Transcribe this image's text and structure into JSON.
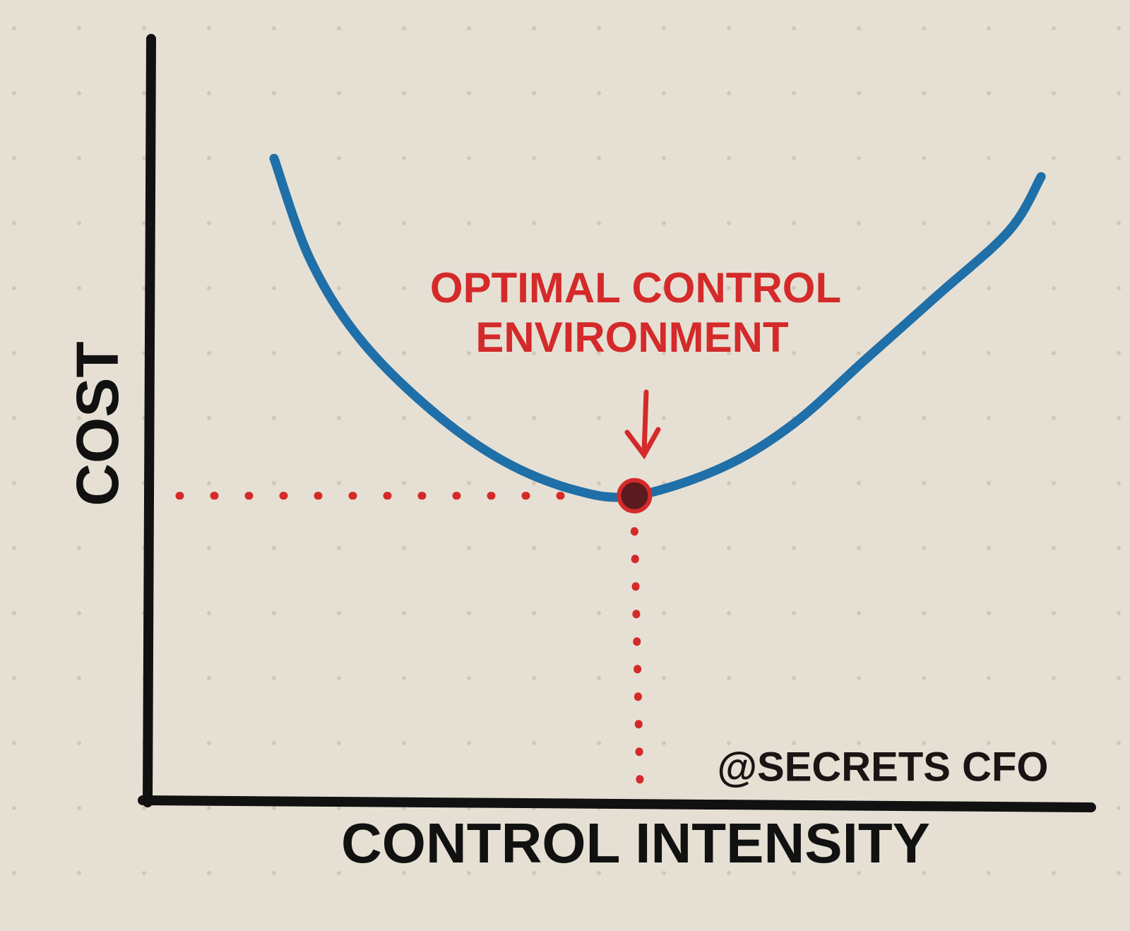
{
  "chart_data": {
    "type": "line",
    "x_label": "CONTROL INTENSITY",
    "y_label": "COST",
    "annotation": [
      "OPTIMAL CONTROL",
      "ENVIRONMENT"
    ],
    "credit": "@SECRETS CFO",
    "xlim": [
      0,
      100
    ],
    "ylim": [
      0,
      100
    ],
    "x": [
      13.4,
      17.2,
      22.5,
      30.2,
      37.8,
      45.4,
      51.6,
      60.7,
      68.3,
      76.0,
      83.7,
      91.3,
      94.7
    ],
    "series": [
      {
        "color": "#1f6fa8",
        "values": [
          84.3,
          71.1,
          60.6,
          51.1,
          44.5,
          40.7,
          40.0,
          43.6,
          49.3,
          57.8,
          66.3,
          74.8,
          81.9
        ]
      }
    ],
    "optimum": {
      "x": 51.6,
      "y": 40.0,
      "color": "#d42a2a"
    }
  }
}
